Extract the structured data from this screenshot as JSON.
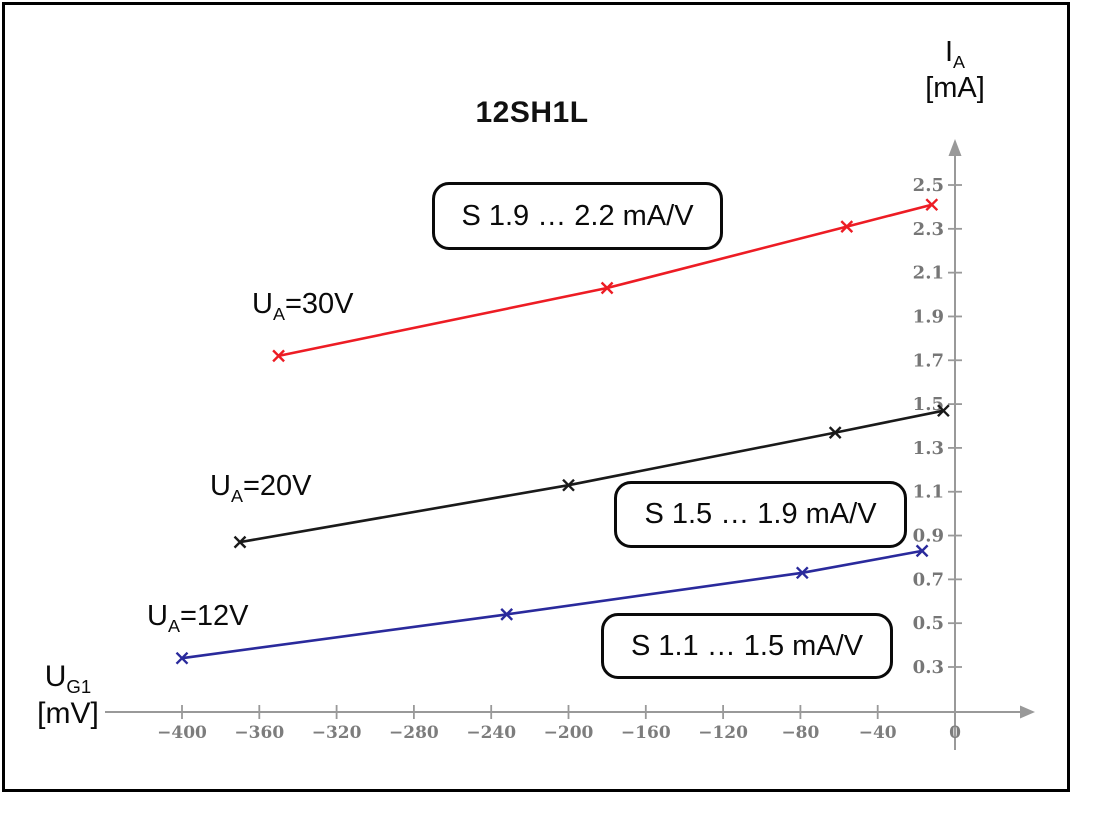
{
  "figure": {
    "title": "12SH1L",
    "border_color": "#000000",
    "background": "#ffffff"
  },
  "y_axis_label": {
    "symbol": "I",
    "symbol_sub": "A",
    "unit": "[mA]"
  },
  "x_axis_label": {
    "symbol": "U",
    "symbol_sub": "G1",
    "unit": "[mV]"
  },
  "curve_labels": [
    {
      "pre": "U",
      "sub": "A",
      "post": "=30V"
    },
    {
      "pre": "U",
      "sub": "A",
      "post": "=20V"
    },
    {
      "pre": "U",
      "sub": "A",
      "post": "=12V"
    }
  ],
  "annotations": [
    {
      "text": "S 1.9 … 2.2 mA/V"
    },
    {
      "text": "S 1.5 … 1.9 mA/V"
    },
    {
      "text": "S 1.1 … 1.5 mA/V"
    }
  ],
  "chart_data": {
    "type": "line",
    "title": "12SH1L",
    "xlabel": "UG1 [mV]",
    "ylabel": "IA [mA]",
    "xlim": [
      -440,
      40
    ],
    "ylim": [
      0.0,
      2.7
    ],
    "x_ticks": [
      -400,
      -360,
      -320,
      -280,
      -240,
      -200,
      -160,
      -120,
      -80,
      -40,
      0
    ],
    "y_ticks": [
      0.3,
      0.5,
      0.7,
      0.9,
      1.1,
      1.3,
      1.5,
      1.7,
      1.9,
      2.1,
      2.3,
      2.5
    ],
    "grid": false,
    "legend_position": "inline-curve-labels",
    "axis_color": "#999999",
    "tick_label_color": "#7a7a7a",
    "marker": "x",
    "series": [
      {
        "name": "UA=30V",
        "color": "#ed1c24",
        "s_range": "S 1.9 … 2.2 mA/V",
        "points": [
          [
            -350,
            1.72
          ],
          [
            -180,
            2.03
          ],
          [
            -56,
            2.31
          ],
          [
            -12,
            2.41
          ]
        ]
      },
      {
        "name": "UA=20V",
        "color": "#1a1a1a",
        "s_range": "S 1.5 … 1.9 mA/V",
        "points": [
          [
            -370,
            0.87
          ],
          [
            -200,
            1.13
          ],
          [
            -62,
            1.37
          ],
          [
            -6,
            1.47
          ]
        ]
      },
      {
        "name": "UA=12V",
        "color": "#2a2a9c",
        "s_range": "S 1.1 … 1.5 mA/V",
        "points": [
          [
            -400,
            0.34
          ],
          [
            -232,
            0.54
          ],
          [
            -79,
            0.73
          ],
          [
            -17,
            0.83
          ]
        ]
      }
    ]
  }
}
